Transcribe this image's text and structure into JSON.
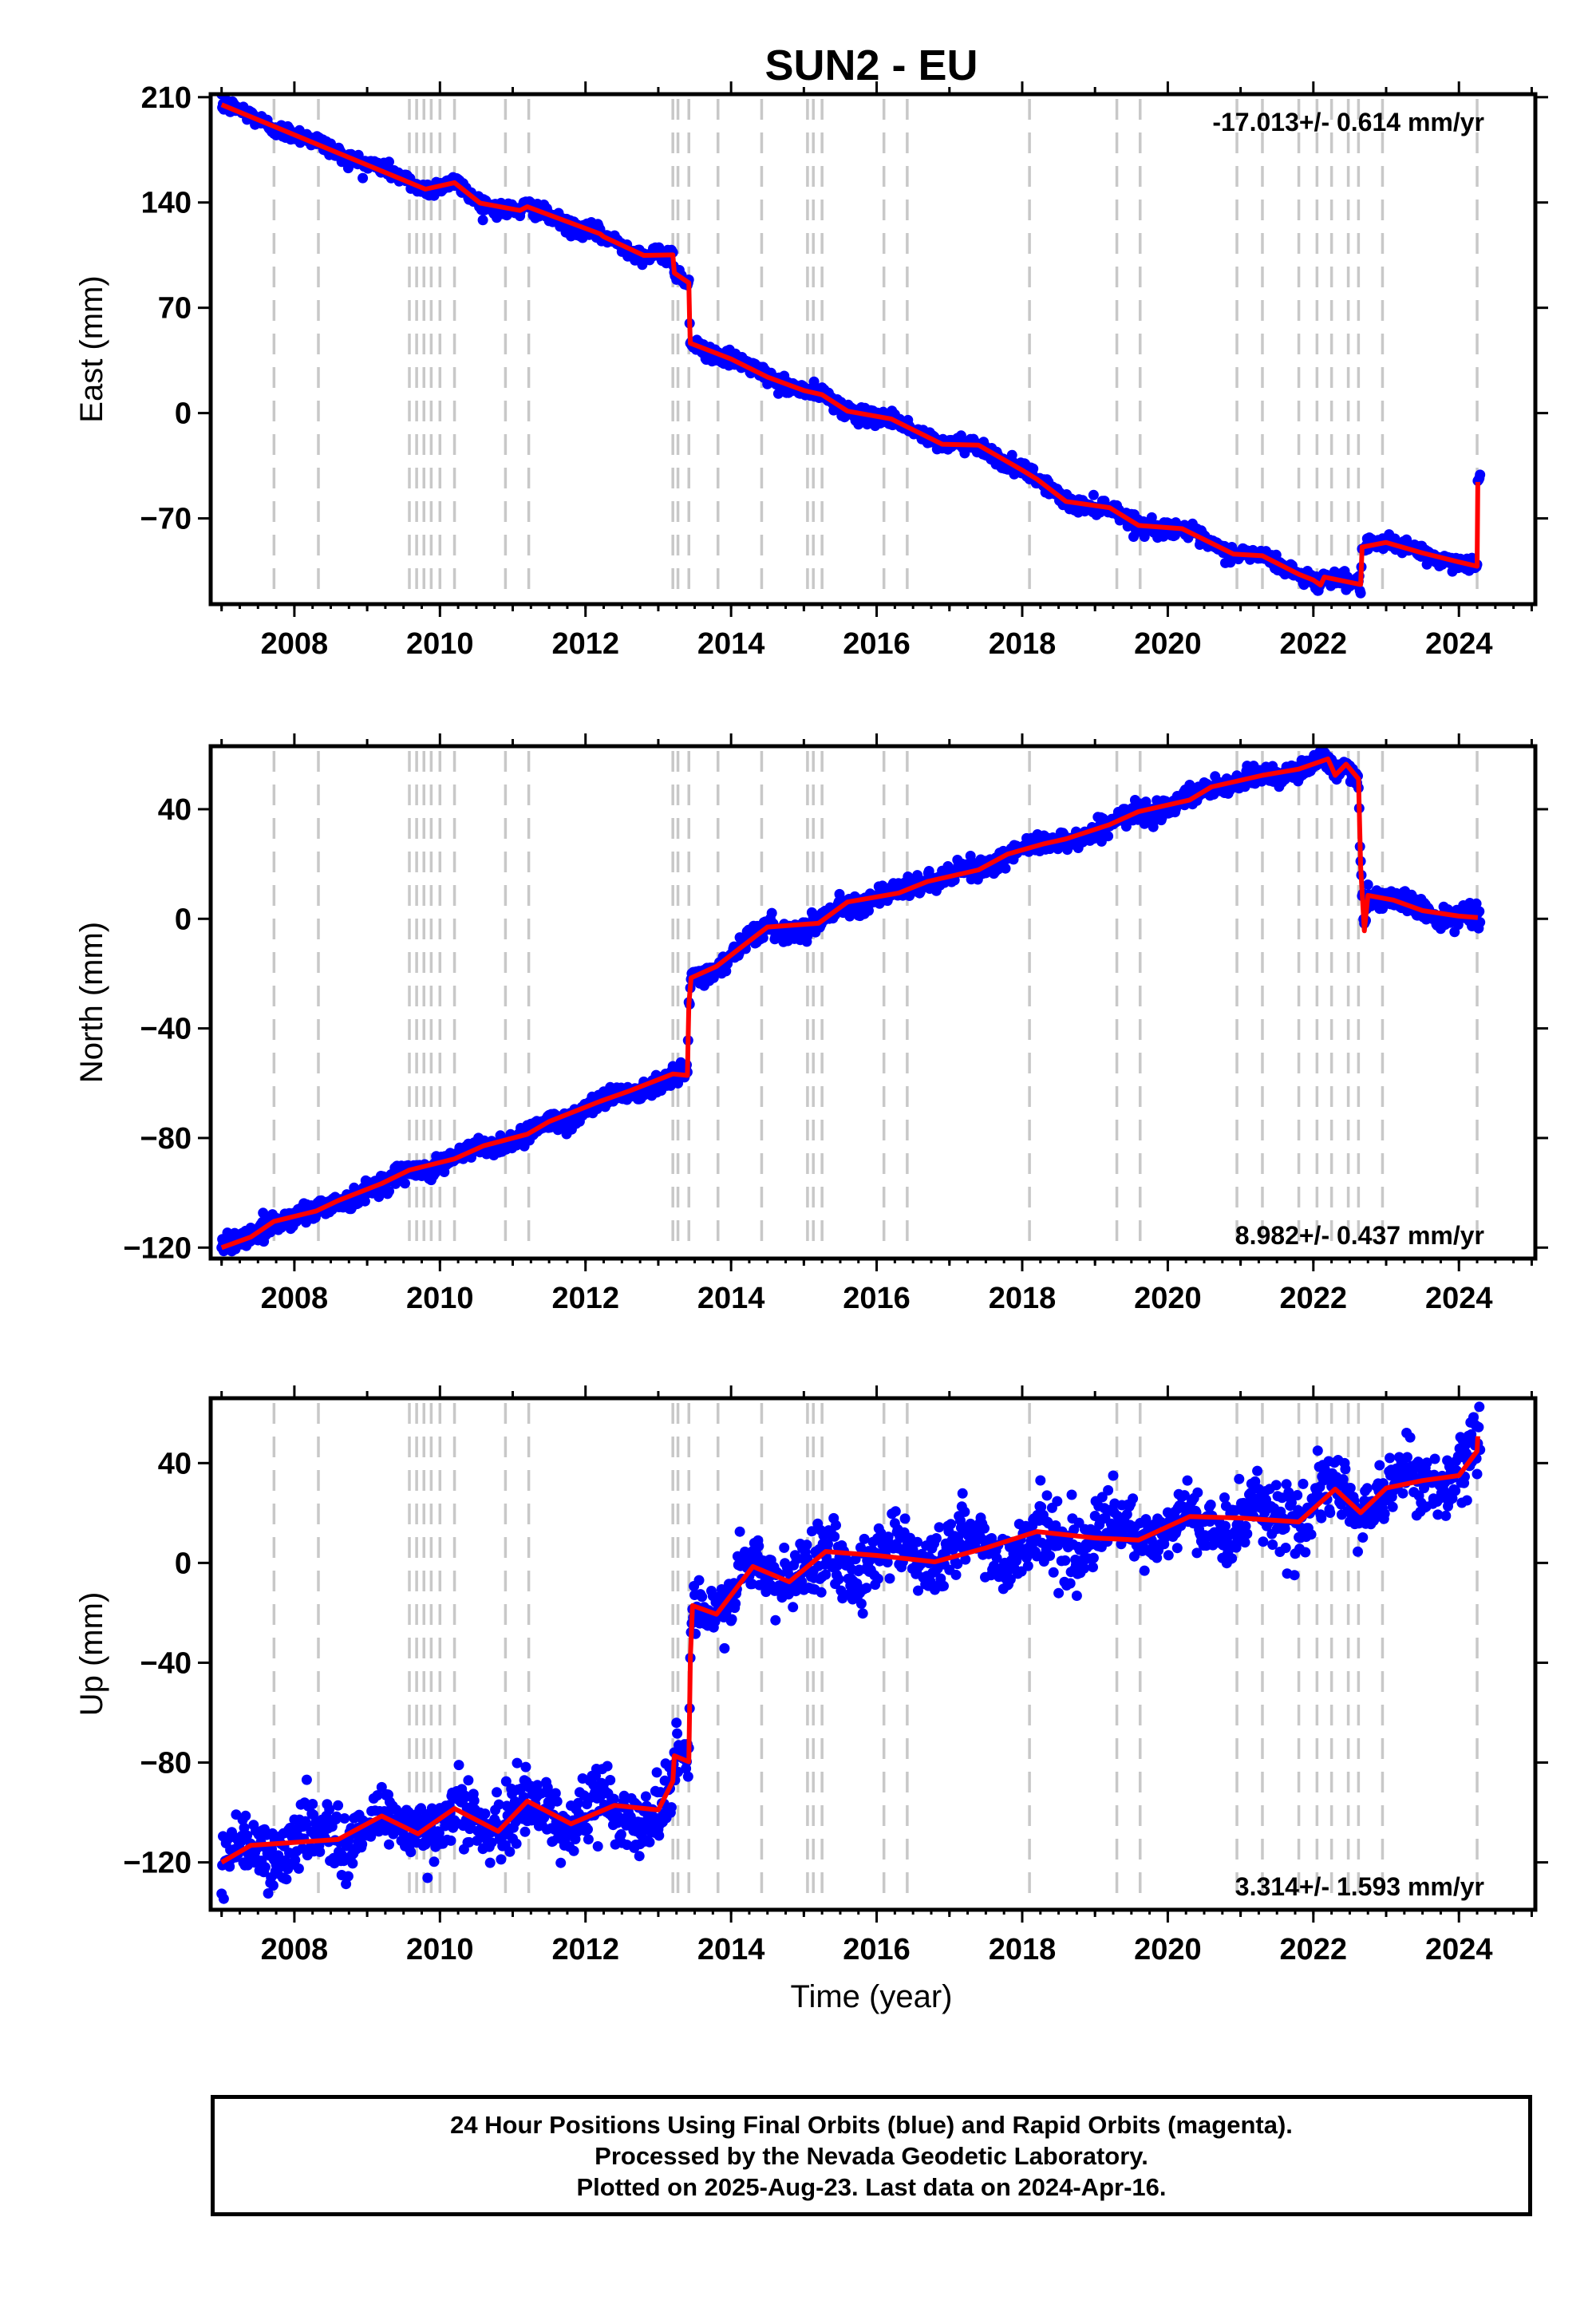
{
  "title": "SUN2 - EU",
  "x_label": "Time (year)",
  "x_ticks": [
    2008,
    2010,
    2012,
    2014,
    2016,
    2018,
    2020,
    2022,
    2024
  ],
  "x_range": [
    2006.85,
    2025.05
  ],
  "event_lines": [
    2007.72,
    2008.33,
    2009.58,
    2009.68,
    2009.78,
    2009.88,
    2010.0,
    2010.2,
    2010.9,
    2011.22,
    2013.2,
    2013.27,
    2013.42,
    2013.82,
    2014.42,
    2015.05,
    2015.13,
    2015.25,
    2016.1,
    2016.42,
    2018.1,
    2019.3,
    2019.62,
    2020.95,
    2021.3,
    2021.8,
    2022.05,
    2022.25,
    2022.48,
    2022.62,
    2022.95,
    2024.25
  ],
  "footer": {
    "line1": "24 Hour Positions Using Final Orbits (blue) and Rapid Orbits (magenta).",
    "line2": "Processed by the Nevada Geodetic Laboratory.",
    "line3": "Plotted on 2025-Aug-23. Last data on 2024-Apr-16."
  },
  "colors": {
    "points": "#0000ff",
    "model": "#ff0000",
    "event_lines": "#c8c8c8",
    "frame": "#000000"
  },
  "chart_data": [
    {
      "type": "scatter",
      "id": "east",
      "ylabel": "East (mm)",
      "ylim": [
        -127,
        212
      ],
      "yticks": [
        210,
        140,
        70,
        0,
        -70
      ],
      "y_tick_labels": [
        "210",
        "140",
        "70",
        "0",
        "−70"
      ],
      "rate": "-17.013+/- 0.614 mm/yr",
      "rate_position": "top-right",
      "noise_sd": 2.5,
      "seasonal_amp": 1.5,
      "series": [
        {
          "name": "Final Orbits",
          "kind": "points"
        },
        {
          "name": "model",
          "kind": "line"
        }
      ],
      "model": [
        [
          2007.0,
          205
        ],
        [
          2009.8,
          150
        ],
        [
          2010.2,
          152
        ],
        [
          2010.55,
          140
        ],
        [
          2011.1,
          134
        ],
        [
          2011.2,
          136
        ],
        [
          2012.2,
          118
        ],
        [
          2012.25,
          116
        ],
        [
          2012.8,
          106
        ],
        [
          2013.2,
          104
        ],
        [
          2013.22,
          92
        ],
        [
          2013.42,
          86
        ],
        [
          2013.43,
          60
        ],
        [
          2013.44,
          46
        ],
        [
          2014.0,
          36
        ],
        [
          2014.5,
          24
        ],
        [
          2015.0,
          15
        ],
        [
          2015.25,
          11
        ],
        [
          2015.6,
          2
        ],
        [
          2016.2,
          -5
        ],
        [
          2016.9,
          -20
        ],
        [
          2017.4,
          -22
        ],
        [
          2018.0,
          -38
        ],
        [
          2018.2,
          -45
        ],
        [
          2018.6,
          -58
        ],
        [
          2019.2,
          -64
        ],
        [
          2019.6,
          -74
        ],
        [
          2020.2,
          -78
        ],
        [
          2020.9,
          -93
        ],
        [
          2021.3,
          -96
        ],
        [
          2021.8,
          -106
        ],
        [
          2022.0,
          -111
        ],
        [
          2022.1,
          -115
        ],
        [
          2022.15,
          -110
        ],
        [
          2022.65,
          -113
        ],
        [
          2022.67,
          -88
        ],
        [
          2023.0,
          -86
        ],
        [
          2023.5,
          -93
        ],
        [
          2024.0,
          -99
        ],
        [
          2024.25,
          -103
        ],
        [
          2024.26,
          -47
        ]
      ]
    },
    {
      "type": "scatter",
      "id": "north",
      "ylabel": "North (mm)",
      "ylim": [
        -124,
        63
      ],
      "yticks": [
        40,
        0,
        -40,
        -80,
        -120
      ],
      "y_tick_labels": [
        "40",
        "0",
        "−40",
        "−80",
        "−120"
      ],
      "rate": "8.982+/- 0.437 mm/yr",
      "rate_position": "bottom-right",
      "noise_sd": 1.8,
      "seasonal_amp": 1.8,
      "series": [
        {
          "name": "Final Orbits",
          "kind": "points"
        },
        {
          "name": "model",
          "kind": "line"
        }
      ],
      "model": [
        [
          2007.0,
          -120
        ],
        [
          2007.4,
          -117
        ],
        [
          2007.72,
          -109
        ],
        [
          2008.3,
          -108
        ],
        [
          2008.6,
          -102
        ],
        [
          2009.2,
          -98
        ],
        [
          2009.58,
          -91
        ],
        [
          2010.2,
          -89
        ],
        [
          2010.6,
          -82
        ],
        [
          2011.2,
          -80
        ],
        [
          2011.5,
          -74
        ],
        [
          2012.2,
          -68
        ],
        [
          2012.6,
          -62
        ],
        [
          2013.2,
          -58
        ],
        [
          2013.4,
          -58
        ],
        [
          2013.42,
          -32
        ],
        [
          2013.45,
          -22
        ],
        [
          2013.8,
          -16
        ],
        [
          2014.1,
          -12
        ],
        [
          2014.5,
          -3
        ],
        [
          2015.2,
          -3
        ],
        [
          2015.6,
          7
        ],
        [
          2016.3,
          8
        ],
        [
          2016.7,
          15
        ],
        [
          2017.4,
          17
        ],
        [
          2017.8,
          25
        ],
        [
          2018.3,
          26
        ],
        [
          2018.6,
          30
        ],
        [
          2019.2,
          33
        ],
        [
          2019.6,
          40
        ],
        [
          2020.3,
          42
        ],
        [
          2020.6,
          49
        ],
        [
          2021.3,
          51
        ],
        [
          2021.8,
          56
        ],
        [
          2022.2,
          57
        ],
        [
          2022.3,
          51
        ],
        [
          2022.45,
          56
        ],
        [
          2022.62,
          52
        ],
        [
          2022.65,
          20
        ],
        [
          2022.7,
          -3
        ],
        [
          2022.75,
          10
        ],
        [
          2023.1,
          6
        ],
        [
          2023.5,
          3
        ],
        [
          2024.0,
          1
        ],
        [
          2024.26,
          -1
        ]
      ]
    },
    {
      "type": "scatter",
      "id": "up",
      "ylabel": "Up (mm)",
      "ylim": [
        -139,
        66
      ],
      "yticks": [
        40,
        0,
        -40,
        -80,
        -120
      ],
      "y_tick_labels": [
        "40",
        "0",
        "−40",
        "−80",
        "−120"
      ],
      "rate": "3.314+/- 1.593 mm/yr",
      "rate_position": "bottom-right",
      "noise_sd": 6.5,
      "seasonal_amp": 6,
      "series": [
        {
          "name": "Final Orbits",
          "kind": "points"
        },
        {
          "name": "model",
          "kind": "line"
        }
      ],
      "model": [
        [
          2007.0,
          -120
        ],
        [
          2007.4,
          -116
        ],
        [
          2008.0,
          -112
        ],
        [
          2008.6,
          -108
        ],
        [
          2009.2,
          -106
        ],
        [
          2009.7,
          -104
        ],
        [
          2010.2,
          -103
        ],
        [
          2010.8,
          -103
        ],
        [
          2011.2,
          -100
        ],
        [
          2011.8,
          -100
        ],
        [
          2012.4,
          -100
        ],
        [
          2013.0,
          -99
        ],
        [
          2013.2,
          -92
        ],
        [
          2013.22,
          -82
        ],
        [
          2013.42,
          -82
        ],
        [
          2013.44,
          -40
        ],
        [
          2013.47,
          -18
        ],
        [
          2013.8,
          -16
        ],
        [
          2014.3,
          -6
        ],
        [
          2014.8,
          -3
        ],
        [
          2015.3,
          0
        ],
        [
          2016.0,
          3
        ],
        [
          2016.8,
          5
        ],
        [
          2017.5,
          6
        ],
        [
          2018.2,
          8
        ],
        [
          2019.0,
          10
        ],
        [
          2019.6,
          12
        ],
        [
          2020.3,
          14
        ],
        [
          2021.0,
          18
        ],
        [
          2021.8,
          21
        ],
        [
          2022.3,
          25
        ],
        [
          2022.65,
          24
        ],
        [
          2023.0,
          30
        ],
        [
          2023.5,
          33
        ],
        [
          2024.0,
          35
        ],
        [
          2024.25,
          40
        ],
        [
          2024.26,
          46
        ]
      ]
    }
  ]
}
